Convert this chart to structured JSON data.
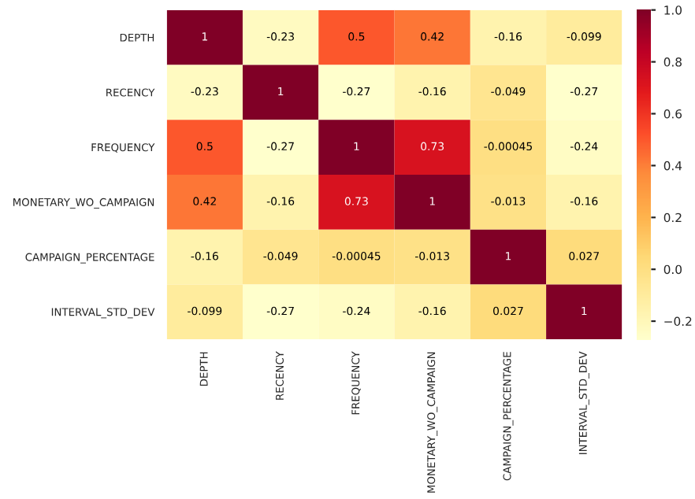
{
  "chart_data": {
    "type": "heatmap",
    "categories": [
      "DEPTH",
      "RECENCY",
      "FREQUENCY",
      "MONETARY_WO_CAMPAIGN",
      "CAMPAIGN_PERCENTAGE",
      "INTERVAL_STD_DEV"
    ],
    "y_categories": [
      "DEPTH",
      "RECENCY",
      "FREQUENCY",
      "MONETARY_WO_CAMPAIGN",
      "CAMPAIGN_PERCENTAGE",
      "INTERVAL_STD_DEV"
    ],
    "cells": [
      [
        1,
        -0.23,
        0.5,
        0.42,
        -0.16,
        -0.099
      ],
      [
        -0.23,
        1,
        -0.27,
        -0.16,
        -0.049,
        -0.27
      ],
      [
        0.5,
        -0.27,
        1,
        0.73,
        -0.00045,
        -0.24
      ],
      [
        0.42,
        -0.16,
        0.73,
        1,
        -0.013,
        -0.16
      ],
      [
        -0.16,
        -0.049,
        -0.00045,
        -0.013,
        1,
        0.027
      ],
      [
        -0.099,
        -0.27,
        -0.24,
        -0.16,
        0.027,
        1
      ]
    ],
    "cell_labels": [
      [
        "1",
        "-0.23",
        "0.5",
        "0.42",
        "-0.16",
        "-0.099"
      ],
      [
        "-0.23",
        "1",
        "-0.27",
        "-0.16",
        "-0.049",
        "-0.27"
      ],
      [
        "0.5",
        "-0.27",
        "1",
        "0.73",
        "-0.00045",
        "-0.24"
      ],
      [
        "0.42",
        "-0.16",
        "0.73",
        "1",
        "-0.013",
        "-0.16"
      ],
      [
        "-0.16",
        "-0.049",
        "-0.00045",
        "-0.013",
        "1",
        "0.027"
      ],
      [
        "-0.099",
        "-0.27",
        "-0.24",
        "-0.16",
        "0.027",
        "1"
      ]
    ],
    "clim": [
      -0.27,
      1
    ],
    "cticks": [
      {
        "value": -0.2,
        "label": "−0.2"
      },
      {
        "value": 0,
        "label": "0.0"
      },
      {
        "value": 0.2,
        "label": "0.2"
      },
      {
        "value": 0.4,
        "label": "0.4"
      },
      {
        "value": 0.6,
        "label": "0.6"
      },
      {
        "value": 0.8,
        "label": "0.8"
      },
      {
        "value": 1,
        "label": "1.0"
      }
    ]
  }
}
